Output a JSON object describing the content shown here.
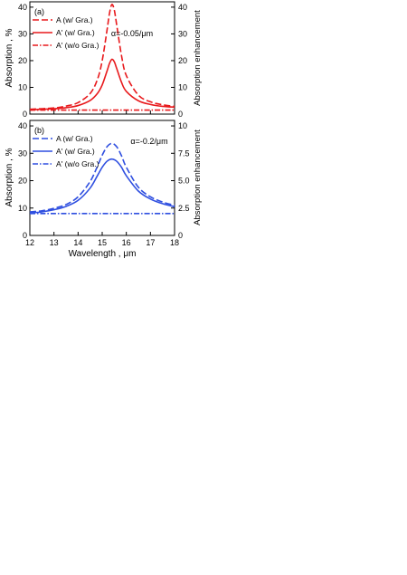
{
  "chart_data": [
    {
      "panel_label": "(a)",
      "type": "line",
      "annotation": "α=-0.05/μm",
      "xlim": [
        12,
        18
      ],
      "ylim": [
        0,
        42
      ],
      "y_ticks": [
        "0",
        "10",
        "20",
        "30",
        "40"
      ],
      "right_ylim": [
        0,
        42
      ],
      "right_y_ticks": [
        "0",
        "10",
        "20",
        "30",
        "40"
      ],
      "ylabel": "Absorption , %",
      "right_ylabel": "Absorption enhancement",
      "color": "#e8191c",
      "legend_position": "top-left",
      "series": [
        {
          "name": "A (w/ Gra.)",
          "style": "dashed",
          "x": [
            12,
            13,
            13.5,
            14,
            14.5,
            14.8,
            15.0,
            15.2,
            15.3,
            15.4,
            15.5,
            15.6,
            15.8,
            16.0,
            16.5,
            17,
            17.5,
            18
          ],
          "y": [
            1.8,
            2.3,
            3.0,
            4.3,
            7.7,
            12.9,
            20.0,
            31.4,
            37.6,
            41.0,
            39.0,
            33.4,
            21.9,
            14.4,
            7.1,
            4.6,
            3.5,
            2.9
          ]
        },
        {
          "name": "A' (w/ Gra.)",
          "style": "solid",
          "x": [
            12,
            13,
            13.5,
            14,
            14.5,
            14.8,
            15.0,
            15.2,
            15.3,
            15.4,
            15.5,
            15.6,
            15.8,
            16.0,
            16.5,
            17,
            17.5,
            18
          ],
          "y": [
            1.6,
            2.0,
            2.4,
            3.2,
            5.1,
            7.7,
            10.9,
            16.1,
            18.9,
            20.5,
            19.6,
            17.1,
            11.9,
            8.5,
            5.0,
            3.6,
            2.9,
            2.6
          ]
        },
        {
          "name": "A' (w/o Gra.)",
          "style": "dashdot",
          "x": [
            12,
            18
          ],
          "y": [
            1.5,
            1.5
          ]
        }
      ]
    },
    {
      "panel_label": "(b)",
      "type": "line",
      "annotation": "α=-0.2/μm",
      "xlim": [
        12,
        18
      ],
      "ylim": [
        0,
        42
      ],
      "y_ticks": [
        "0",
        "10",
        "20",
        "30",
        "40"
      ],
      "right_ylim": [
        0,
        10.5
      ],
      "right_y_ticks": [
        "0",
        "2.5",
        "5.0",
        "7.5",
        "10"
      ],
      "ylabel": "Absorption , %",
      "right_ylabel": "Absorption enhancement",
      "xlabel": "Wavelength , μm",
      "x_ticks": [
        "12",
        "13",
        "14",
        "15",
        "16",
        "17",
        "18"
      ],
      "color": "#2f4fe0",
      "legend_position": "top-left",
      "series": [
        {
          "name": "A (w/ Gra.)",
          "style": "dashed",
          "x": [
            12,
            12.5,
            13,
            13.5,
            14,
            14.5,
            14.8,
            15.0,
            15.2,
            15.4,
            15.6,
            15.8,
            16.0,
            16.5,
            17,
            17.5,
            18
          ],
          "y": [
            8.6,
            9.0,
            9.9,
            11.3,
            14.1,
            19.7,
            25.2,
            29.3,
            32.4,
            33.6,
            32.4,
            29.1,
            24.9,
            17.6,
            14.1,
            12.2,
            11.0
          ]
        },
        {
          "name": "A' (w/ Gra.)",
          "style": "solid",
          "x": [
            12,
            12.5,
            13,
            13.5,
            14,
            14.5,
            14.8,
            15.0,
            15.2,
            15.4,
            15.6,
            15.8,
            16.0,
            16.5,
            17,
            17.5,
            18
          ],
          "y": [
            8.2,
            8.6,
            9.4,
            10.6,
            12.8,
            17.3,
            21.8,
            24.9,
            27.1,
            27.9,
            27.1,
            24.9,
            21.8,
            16.2,
            13.3,
            11.6,
            10.5
          ]
        },
        {
          "name": "A' (w/o Gra.)",
          "style": "dashdot",
          "x": [
            12,
            18
          ],
          "y": [
            8.0,
            8.0
          ]
        }
      ]
    }
  ]
}
